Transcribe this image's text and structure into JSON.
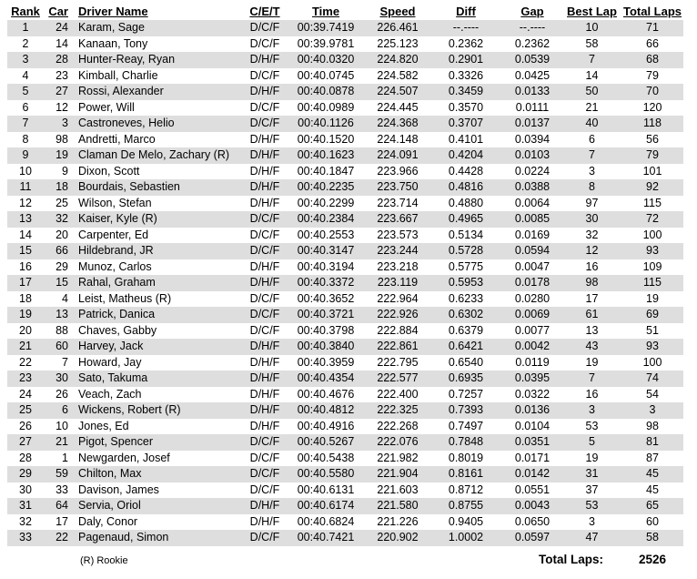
{
  "colors": {
    "row_stripe": "#dedede",
    "background": "#ffffff",
    "text": "#000000"
  },
  "table": {
    "columns": [
      {
        "key": "rank",
        "label": "Rank"
      },
      {
        "key": "car",
        "label": "Car"
      },
      {
        "key": "driver",
        "label": "Driver Name"
      },
      {
        "key": "cet",
        "label": "C/E/T"
      },
      {
        "key": "time",
        "label": "Time"
      },
      {
        "key": "speed",
        "label": "Speed"
      },
      {
        "key": "diff",
        "label": "Diff"
      },
      {
        "key": "gap",
        "label": "Gap"
      },
      {
        "key": "best",
        "label": "Best Lap"
      },
      {
        "key": "total",
        "label": "Total Laps"
      }
    ],
    "rows": [
      [
        "1",
        "24",
        "Karam, Sage",
        "D/C/F",
        "00:39.7419",
        "226.461",
        "--.----",
        "--.----",
        "10",
        "71"
      ],
      [
        "2",
        "14",
        "Kanaan, Tony",
        "D/C/F",
        "00:39.9781",
        "225.123",
        "0.2362",
        "0.2362",
        "58",
        "66"
      ],
      [
        "3",
        "28",
        "Hunter-Reay, Ryan",
        "D/H/F",
        "00:40.0320",
        "224.820",
        "0.2901",
        "0.0539",
        "7",
        "68"
      ],
      [
        "4",
        "23",
        "Kimball, Charlie",
        "D/C/F",
        "00:40.0745",
        "224.582",
        "0.3326",
        "0.0425",
        "14",
        "79"
      ],
      [
        "5",
        "27",
        "Rossi, Alexander",
        "D/H/F",
        "00:40.0878",
        "224.507",
        "0.3459",
        "0.0133",
        "50",
        "70"
      ],
      [
        "6",
        "12",
        "Power, Will",
        "D/C/F",
        "00:40.0989",
        "224.445",
        "0.3570",
        "0.0111",
        "21",
        "120"
      ],
      [
        "7",
        "3",
        "Castroneves, Helio",
        "D/C/F",
        "00:40.1126",
        "224.368",
        "0.3707",
        "0.0137",
        "40",
        "118"
      ],
      [
        "8",
        "98",
        "Andretti, Marco",
        "D/H/F",
        "00:40.1520",
        "224.148",
        "0.4101",
        "0.0394",
        "6",
        "56"
      ],
      [
        "9",
        "19",
        "Claman De Melo, Zachary (R)",
        "D/H/F",
        "00:40.1623",
        "224.091",
        "0.4204",
        "0.0103",
        "7",
        "79"
      ],
      [
        "10",
        "9",
        "Dixon, Scott",
        "D/H/F",
        "00:40.1847",
        "223.966",
        "0.4428",
        "0.0224",
        "3",
        "101"
      ],
      [
        "11",
        "18",
        "Bourdais, Sebastien",
        "D/H/F",
        "00:40.2235",
        "223.750",
        "0.4816",
        "0.0388",
        "8",
        "92"
      ],
      [
        "12",
        "25",
        "Wilson, Stefan",
        "D/H/F",
        "00:40.2299",
        "223.714",
        "0.4880",
        "0.0064",
        "97",
        "115"
      ],
      [
        "13",
        "32",
        "Kaiser, Kyle (R)",
        "D/C/F",
        "00:40.2384",
        "223.667",
        "0.4965",
        "0.0085",
        "30",
        "72"
      ],
      [
        "14",
        "20",
        "Carpenter, Ed",
        "D/C/F",
        "00:40.2553",
        "223.573",
        "0.5134",
        "0.0169",
        "32",
        "100"
      ],
      [
        "15",
        "66",
        "Hildebrand, JR",
        "D/C/F",
        "00:40.3147",
        "223.244",
        "0.5728",
        "0.0594",
        "12",
        "93"
      ],
      [
        "16",
        "29",
        "Munoz, Carlos",
        "D/H/F",
        "00:40.3194",
        "223.218",
        "0.5775",
        "0.0047",
        "16",
        "109"
      ],
      [
        "17",
        "15",
        "Rahal, Graham",
        "D/H/F",
        "00:40.3372",
        "223.119",
        "0.5953",
        "0.0178",
        "98",
        "115"
      ],
      [
        "18",
        "4",
        "Leist, Matheus (R)",
        "D/C/F",
        "00:40.3652",
        "222.964",
        "0.6233",
        "0.0280",
        "17",
        "19"
      ],
      [
        "19",
        "13",
        "Patrick, Danica",
        "D/C/F",
        "00:40.3721",
        "222.926",
        "0.6302",
        "0.0069",
        "61",
        "69"
      ],
      [
        "20",
        "88",
        "Chaves, Gabby",
        "D/C/F",
        "00:40.3798",
        "222.884",
        "0.6379",
        "0.0077",
        "13",
        "51"
      ],
      [
        "21",
        "60",
        "Harvey, Jack",
        "D/H/F",
        "00:40.3840",
        "222.861",
        "0.6421",
        "0.0042",
        "43",
        "93"
      ],
      [
        "22",
        "7",
        "Howard, Jay",
        "D/H/F",
        "00:40.3959",
        "222.795",
        "0.6540",
        "0.0119",
        "19",
        "100"
      ],
      [
        "23",
        "30",
        "Sato, Takuma",
        "D/H/F",
        "00:40.4354",
        "222.577",
        "0.6935",
        "0.0395",
        "7",
        "74"
      ],
      [
        "24",
        "26",
        "Veach, Zach",
        "D/H/F",
        "00:40.4676",
        "222.400",
        "0.7257",
        "0.0322",
        "16",
        "54"
      ],
      [
        "25",
        "6",
        "Wickens, Robert (R)",
        "D/H/F",
        "00:40.4812",
        "222.325",
        "0.7393",
        "0.0136",
        "3",
        "3"
      ],
      [
        "26",
        "10",
        "Jones, Ed",
        "D/H/F",
        "00:40.4916",
        "222.268",
        "0.7497",
        "0.0104",
        "53",
        "98"
      ],
      [
        "27",
        "21",
        "Pigot, Spencer",
        "D/C/F",
        "00:40.5267",
        "222.076",
        "0.7848",
        "0.0351",
        "5",
        "81"
      ],
      [
        "28",
        "1",
        "Newgarden, Josef",
        "D/C/F",
        "00:40.5438",
        "221.982",
        "0.8019",
        "0.0171",
        "19",
        "87"
      ],
      [
        "29",
        "59",
        "Chilton, Max",
        "D/C/F",
        "00:40.5580",
        "221.904",
        "0.8161",
        "0.0142",
        "31",
        "45"
      ],
      [
        "30",
        "33",
        "Davison, James",
        "D/C/F",
        "00:40.6131",
        "221.603",
        "0.8712",
        "0.0551",
        "37",
        "45"
      ],
      [
        "31",
        "64",
        "Servia, Oriol",
        "D/H/F",
        "00:40.6174",
        "221.580",
        "0.8755",
        "0.0043",
        "53",
        "65"
      ],
      [
        "32",
        "17",
        "Daly, Conor",
        "D/H/F",
        "00:40.6824",
        "221.226",
        "0.9405",
        "0.0650",
        "3",
        "60"
      ],
      [
        "33",
        "22",
        "Pagenaud, Simon",
        "D/C/F",
        "00:40.7421",
        "220.902",
        "1.0002",
        "0.0597",
        "47",
        "58"
      ]
    ]
  },
  "footer": {
    "rookie_note": "(R) Rookie",
    "total_laps_label": "Total Laps:",
    "total_laps_value": "2526"
  }
}
